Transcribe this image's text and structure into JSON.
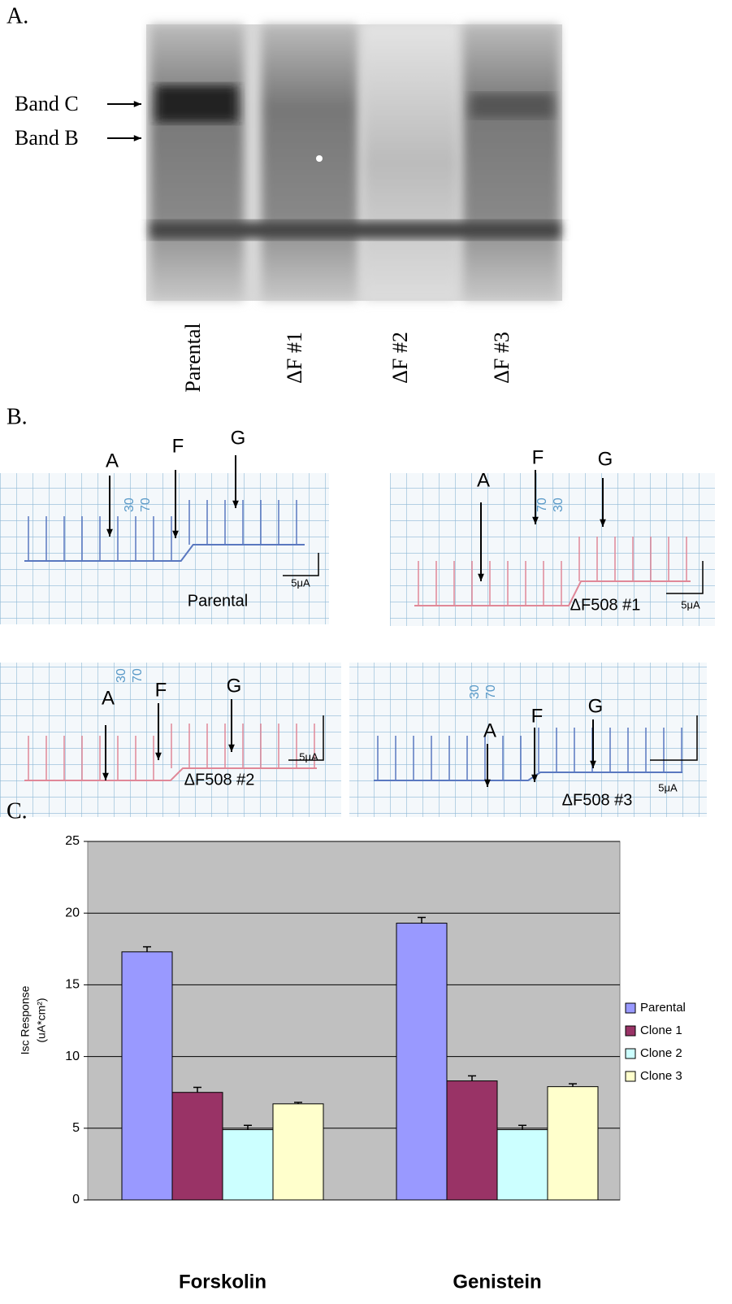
{
  "panel_a": {
    "label": "A.",
    "bands": [
      "Band C",
      "Band B"
    ],
    "lanes": [
      "Parental",
      "ΔF #1",
      "ΔF #2",
      "ΔF #3"
    ]
  },
  "panel_b": {
    "label": "B.",
    "panels": [
      {
        "markers": [
          "A",
          "F",
          "G"
        ],
        "label": "Parental",
        "scale": "5μA",
        "paper_marks": [
          "30",
          "70"
        ]
      },
      {
        "markers": [
          "A",
          "F",
          "G"
        ],
        "label": "ΔF508 #1",
        "scale": "5μA",
        "paper_marks": [
          "70",
          "30"
        ]
      },
      {
        "markers": [
          "A",
          "F",
          "G"
        ],
        "label": "ΔF508 #2",
        "scale": "5μA",
        "paper_marks": [
          "30",
          "70"
        ]
      },
      {
        "markers": [
          "A",
          "F",
          "G"
        ],
        "label": "ΔF508 #3",
        "scale": "5μA",
        "paper_marks": [
          "30",
          "70"
        ]
      }
    ]
  },
  "panel_c_label": "C.",
  "chart_data": {
    "type": "bar",
    "y_label": "Isc Response",
    "y_label_units": "(uA*cm²)",
    "categories": [
      "Forskolin",
      "Genistein"
    ],
    "series": [
      {
        "name": "Parental",
        "color": "#9999ff",
        "values": [
          17.3,
          19.3
        ],
        "errors": [
          0.35,
          0.4
        ]
      },
      {
        "name": "Clone 1",
        "color": "#993366",
        "values": [
          7.5,
          8.3
        ],
        "errors": [
          0.35,
          0.35
        ]
      },
      {
        "name": "Clone 2",
        "color": "#ccffff",
        "values": [
          4.9,
          4.9
        ],
        "errors": [
          0.3,
          0.3
        ]
      },
      {
        "name": "Clone 3",
        "color": "#ffffcc",
        "values": [
          6.7,
          7.9
        ],
        "errors": [
          0.1,
          0.2
        ]
      }
    ],
    "ylim": [
      0,
      25
    ],
    "yticks": [
      0,
      5,
      10,
      15,
      20,
      25
    ],
    "grid": true,
    "background": "#c0c0c0",
    "legend": "right"
  }
}
